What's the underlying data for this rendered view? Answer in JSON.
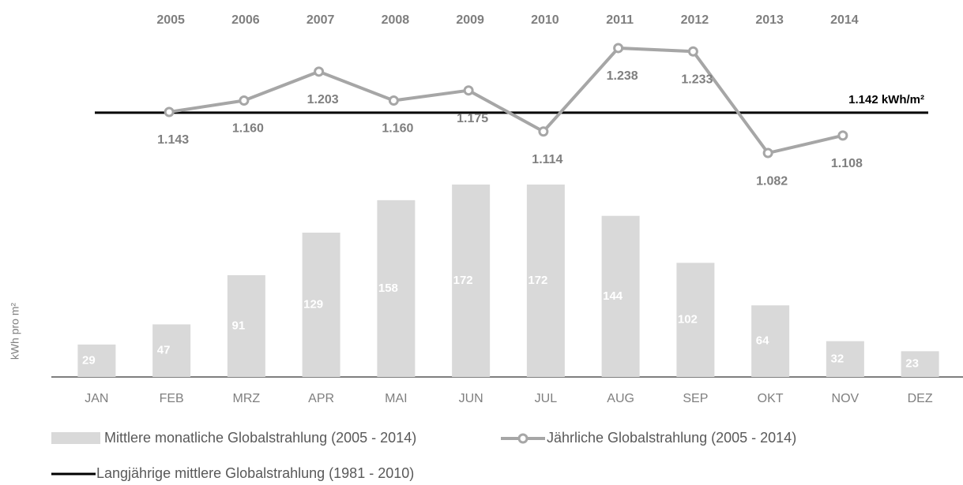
{
  "chart_data": [
    {
      "type": "bar",
      "name": "Mittlere monatliche Globalstrahlung (2005 - 2014)",
      "y_label": "kWh pro m²",
      "categories": [
        "JAN",
        "FEB",
        "MRZ",
        "APR",
        "MAI",
        "JUN",
        "JUL",
        "AUG",
        "SEP",
        "OKT",
        "NOV",
        "DEZ"
      ],
      "values": [
        29,
        47,
        91,
        129,
        158,
        172,
        172,
        144,
        102,
        64,
        32,
        23
      ],
      "color": "#d9d9d9"
    },
    {
      "type": "line",
      "name": "Jährliche Globalstrahlung (2005 - 2014)",
      "categories": [
        "2005",
        "2006",
        "2007",
        "2008",
        "2009",
        "2010",
        "2011",
        "2012",
        "2013",
        "2014"
      ],
      "values": [
        1143,
        1160,
        1203,
        1160,
        1175,
        1114,
        1238,
        1233,
        1082,
        1108
      ],
      "value_labels": [
        "1.143",
        "1.160",
        "1.203",
        "1.160",
        "1.175",
        "1.114",
        "1.238",
        "1.233",
        "1.082",
        "1.108"
      ],
      "color": "#a6a6a6",
      "reference": {
        "name": "Langjährige mittlere Globalstrahlung (1981 - 2010)",
        "value": 1142,
        "label": "1.142 kWh/m²",
        "color": "#000000"
      }
    }
  ]
}
